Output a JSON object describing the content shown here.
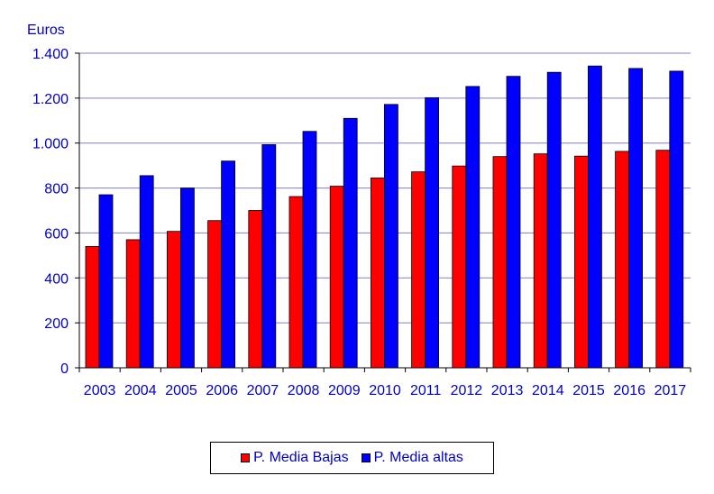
{
  "chart_data": {
    "type": "bar",
    "ylabel": "Euros",
    "ylim": [
      0,
      1400
    ],
    "yticks": [
      0,
      200,
      400,
      600,
      800,
      1000,
      1200,
      1400
    ],
    "ytick_labels": [
      "0",
      "200",
      "400",
      "600",
      "800",
      "1.000",
      "1.200",
      "1.400"
    ],
    "grid": true,
    "legend_position": "bottom",
    "categories": [
      "2003",
      "2004",
      "2005",
      "2006",
      "2007",
      "2008",
      "2009",
      "2010",
      "2011",
      "2012",
      "2013",
      "2014",
      "2015",
      "2016",
      "2017"
    ],
    "series": [
      {
        "name": "P. Media Bajas",
        "color": "#ff0000",
        "values": [
          540,
          570,
          607,
          655,
          700,
          762,
          808,
          845,
          872,
          898,
          940,
          952,
          942,
          963,
          968
        ]
      },
      {
        "name": "P. Media altas",
        "color": "#0000ff",
        "values": [
          770,
          855,
          800,
          920,
          993,
          1052,
          1110,
          1172,
          1202,
          1252,
          1297,
          1315,
          1343,
          1332,
          1320
        ]
      }
    ]
  }
}
